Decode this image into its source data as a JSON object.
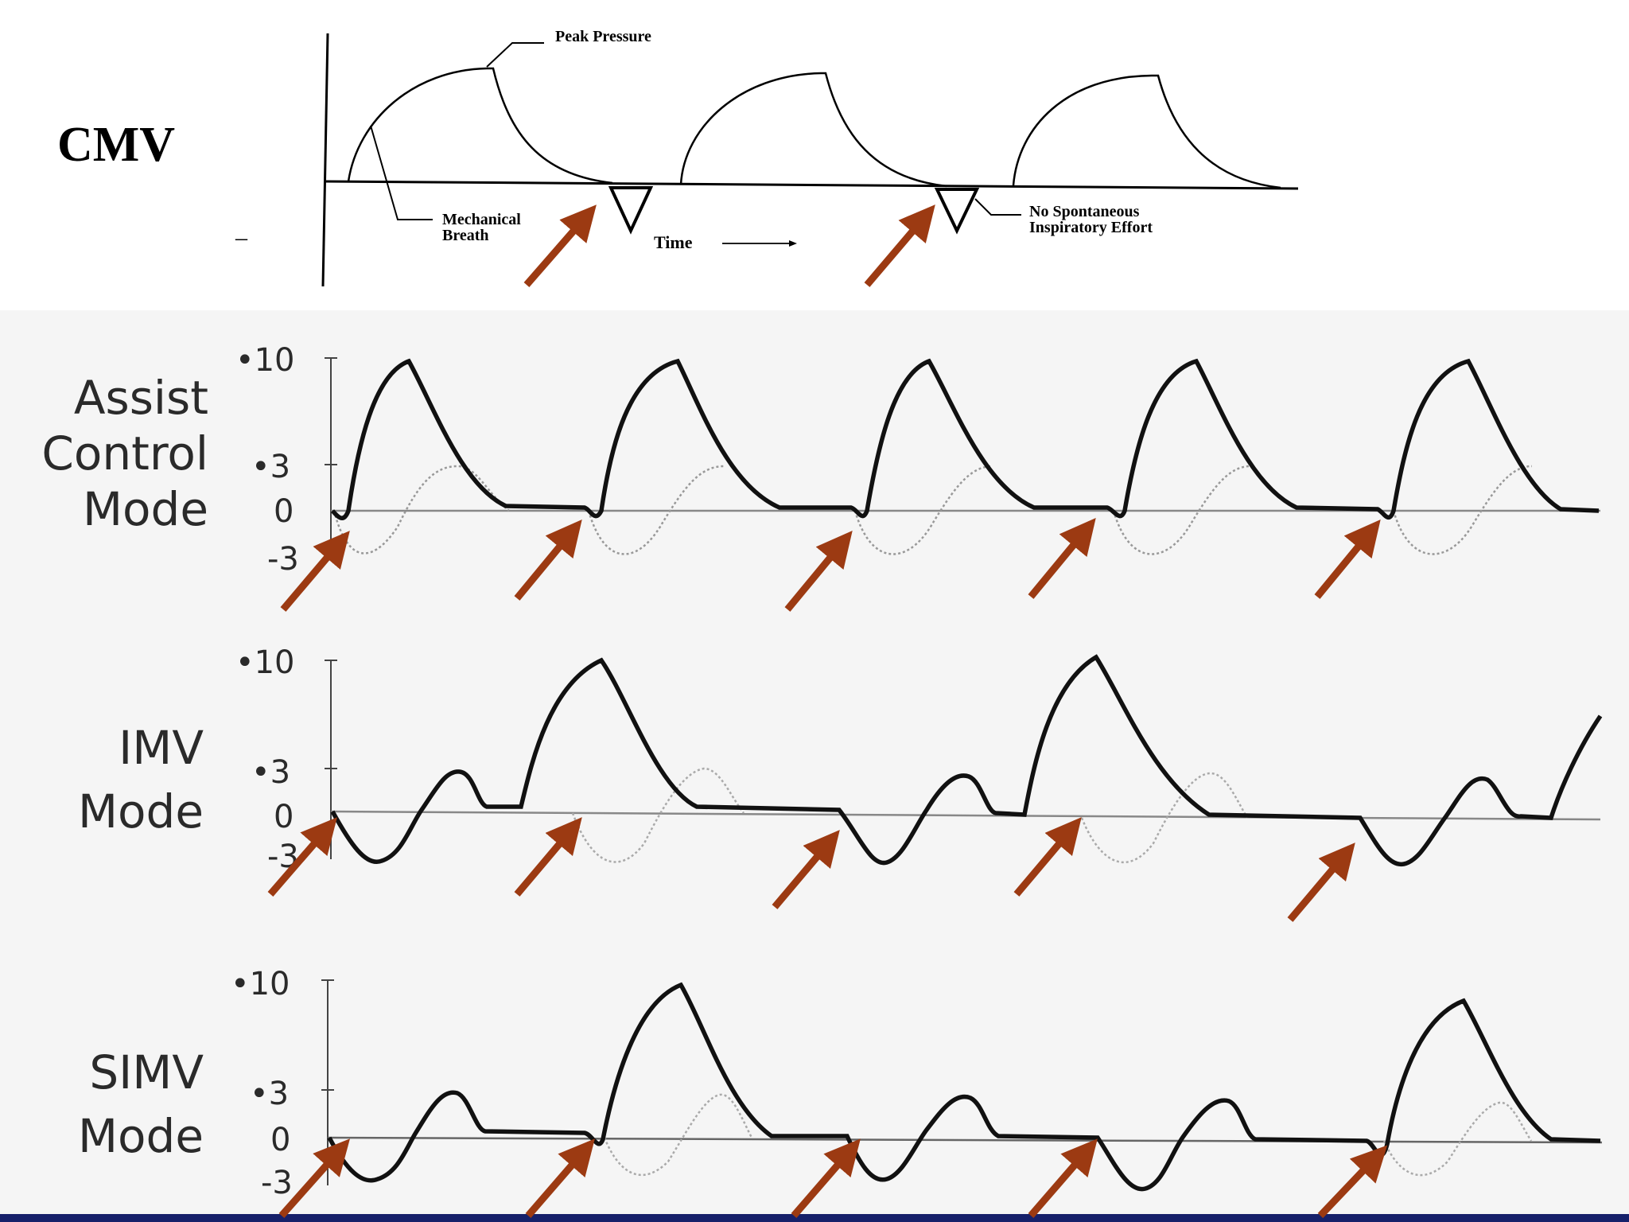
{
  "cmv": {
    "title": "CMV",
    "peak_pressure_label": "Peak Pressure",
    "mechanical_breath_label_line1": "Mechanical",
    "mechanical_breath_label_line2": "Breath",
    "time_label": "Time",
    "no_spont_line1": "No Spontaneous",
    "no_spont_line2": "Inspiratory Effort",
    "minus_mark": "–"
  },
  "modes": [
    {
      "label_lines": [
        "Assist",
        "Control",
        "Mode"
      ]
    },
    {
      "label_lines": [
        "IMV",
        "Mode"
      ]
    },
    {
      "label_lines": [
        "SIMV",
        "Mode"
      ]
    }
  ],
  "y_ticks": [
    "•10",
    "•3",
    "0",
    "-3"
  ],
  "colors": {
    "arrow": "#9c3a12",
    "waveform": "#111111",
    "panel_bg": "#f5f5f5",
    "bottom_bar": "#16206a"
  }
}
